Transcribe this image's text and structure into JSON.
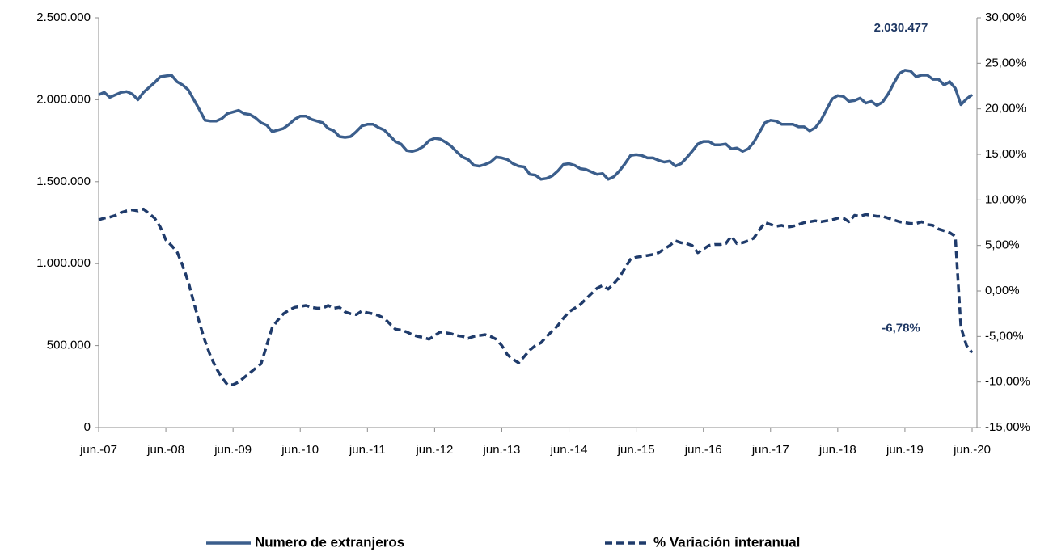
{
  "chart_data": {
    "type": "line",
    "categories": [
      "jun.-07",
      null,
      null,
      null,
      null,
      null,
      null,
      null,
      null,
      null,
      null,
      null,
      "jun.-08",
      null,
      null,
      null,
      null,
      null,
      null,
      null,
      null,
      null,
      null,
      null,
      "jun.-09",
      null,
      null,
      null,
      null,
      null,
      null,
      null,
      null,
      null,
      null,
      null,
      "jun.-10",
      null,
      null,
      null,
      null,
      null,
      null,
      null,
      null,
      null,
      null,
      null,
      "jun.-11",
      null,
      null,
      null,
      null,
      null,
      null,
      null,
      null,
      null,
      null,
      null,
      "jun.-12",
      null,
      null,
      null,
      null,
      null,
      null,
      null,
      null,
      null,
      null,
      null,
      "jun.-13",
      null,
      null,
      null,
      null,
      null,
      null,
      null,
      null,
      null,
      null,
      null,
      "jun.-14",
      null,
      null,
      null,
      null,
      null,
      null,
      null,
      null,
      null,
      null,
      null,
      "jun.-15",
      null,
      null,
      null,
      null,
      null,
      null,
      null,
      null,
      null,
      null,
      null,
      "jun.-16",
      null,
      null,
      null,
      null,
      null,
      null,
      null,
      null,
      null,
      null,
      null,
      "jun.-17",
      null,
      null,
      null,
      null,
      null,
      null,
      null,
      null,
      null,
      null,
      null,
      "jun.-18",
      null,
      null,
      null,
      null,
      null,
      null,
      null,
      null,
      null,
      null,
      null,
      "jun.-19",
      null,
      null,
      null,
      null,
      null,
      null,
      null,
      null,
      null,
      null,
      null,
      "jun.-20"
    ],
    "series": [
      {
        "name": "Numero de extranjeros",
        "color": "#3b5e8c",
        "dash": false,
        "values": [
          2030000,
          2045000,
          2015000,
          2030000,
          2045000,
          2050000,
          2035000,
          2000000,
          2045000,
          2075000,
          2105000,
          2140000,
          2145000,
          2150000,
          2110000,
          2090000,
          2060000,
          2000000,
          1940000,
          1875000,
          1870000,
          1870000,
          1885000,
          1915000,
          1925000,
          1935000,
          1915000,
          1910000,
          1890000,
          1860000,
          1845000,
          1805000,
          1815000,
          1825000,
          1850000,
          1880000,
          1900000,
          1900000,
          1880000,
          1870000,
          1860000,
          1825000,
          1810000,
          1775000,
          1770000,
          1775000,
          1805000,
          1840000,
          1850000,
          1850000,
          1830000,
          1815000,
          1780000,
          1745000,
          1730000,
          1690000,
          1685000,
          1695000,
          1715000,
          1750000,
          1765000,
          1760000,
          1740000,
          1715000,
          1680000,
          1650000,
          1635000,
          1600000,
          1595000,
          1605000,
          1620000,
          1650000,
          1645000,
          1635000,
          1610000,
          1595000,
          1590000,
          1545000,
          1540000,
          1515000,
          1520000,
          1535000,
          1565000,
          1605000,
          1610000,
          1600000,
          1580000,
          1575000,
          1560000,
          1545000,
          1550000,
          1515000,
          1530000,
          1565000,
          1610000,
          1660000,
          1665000,
          1660000,
          1645000,
          1645000,
          1630000,
          1620000,
          1625000,
          1595000,
          1610000,
          1645000,
          1685000,
          1730000,
          1745000,
          1745000,
          1725000,
          1725000,
          1730000,
          1700000,
          1705000,
          1685000,
          1700000,
          1740000,
          1800000,
          1860000,
          1875000,
          1870000,
          1850000,
          1850000,
          1850000,
          1835000,
          1835000,
          1810000,
          1830000,
          1875000,
          1940000,
          2005000,
          2025000,
          2020000,
          1990000,
          1995000,
          2010000,
          1980000,
          1990000,
          1965000,
          1985000,
          2035000,
          2100000,
          2160000,
          2180000,
          2175000,
          2140000,
          2150000,
          2150000,
          2125000,
          2125000,
          2090000,
          2110000,
          2070000,
          1970000,
          2005000,
          2030477
        ]
      },
      {
        "name": "% Variación interanual",
        "color": "#1f3b6b",
        "dash": true,
        "axis": "y2",
        "values": [
          7.8,
          8.0,
          8.1,
          8.3,
          8.6,
          8.8,
          8.9,
          8.8,
          9.0,
          8.5,
          8.0,
          7.0,
          5.6,
          5.0,
          4.3,
          2.8,
          1.0,
          -1.3,
          -3.5,
          -5.5,
          -7.2,
          -8.5,
          -9.5,
          -10.3,
          -10.3,
          -10.0,
          -9.5,
          -9.0,
          -8.5,
          -8.0,
          -6.0,
          -4.0,
          -3.2,
          -2.5,
          -2.1,
          -1.8,
          -1.7,
          -1.6,
          -1.8,
          -1.9,
          -1.9,
          -1.6,
          -1.9,
          -1.8,
          -2.3,
          -2.5,
          -2.6,
          -2.2,
          -2.4,
          -2.5,
          -2.7,
          -3.0,
          -3.6,
          -4.2,
          -4.3,
          -4.5,
          -4.8,
          -5.0,
          -5.1,
          -5.3,
          -4.9,
          -4.5,
          -4.6,
          -4.7,
          -4.9,
          -5.0,
          -5.2,
          -5.0,
          -4.9,
          -4.8,
          -5.0,
          -5.3,
          -6.0,
          -7.0,
          -7.5,
          -7.9,
          -7.2,
          -6.5,
          -6.0,
          -5.7,
          -5.0,
          -4.4,
          -3.8,
          -3.0,
          -2.3,
          -1.9,
          -1.5,
          -0.9,
          -0.3,
          0.3,
          0.6,
          0.2,
          0.8,
          1.5,
          2.5,
          3.5,
          3.7,
          3.8,
          3.9,
          4.0,
          4.2,
          4.6,
          5.0,
          5.5,
          5.3,
          5.2,
          5.0,
          4.2,
          4.6,
          5.0,
          5.1,
          5.1,
          5.2,
          6.0,
          5.2,
          5.3,
          5.5,
          5.8,
          6.7,
          7.5,
          7.3,
          7.1,
          7.2,
          7.0,
          7.1,
          7.3,
          7.5,
          7.6,
          7.7,
          7.6,
          7.7,
          7.8,
          8.0,
          8.0,
          7.6,
          8.3,
          8.2,
          8.4,
          8.3,
          8.2,
          8.2,
          8.0,
          7.8,
          7.6,
          7.5,
          7.4,
          7.4,
          7.6,
          7.3,
          7.2,
          6.8,
          6.6,
          6.4,
          6.0,
          -4.0,
          -6.0,
          -6.78
        ]
      }
    ],
    "annotations": [
      "2.030.477",
      "-6,78%"
    ],
    "ylim": [
      0,
      2500000
    ],
    "yticks": [
      0,
      {
        "value": 500000,
        "label": "500.000"
      },
      {
        "value": 1000000,
        "label": "1.000.000"
      },
      {
        "value": 1500000,
        "label": "1.500.000"
      },
      {
        "value": 2000000,
        "label": "2.000.000"
      },
      {
        "value": 2500000,
        "label": "2.500.000"
      }
    ],
    "y2lim": [
      -15,
      30
    ],
    "y2ticks": [
      {
        "value": -15,
        "label": "-15,00%"
      },
      {
        "value": -10,
        "label": "-10,00%"
      },
      {
        "value": -5,
        "label": "-5,00%"
      },
      {
        "value": 0,
        "label": "0,00%"
      },
      {
        "value": 5,
        "label": "5,00%"
      },
      {
        "value": 10,
        "label": "10,00%"
      },
      {
        "value": 15,
        "label": "15,00%"
      },
      {
        "value": 20,
        "label": "20,00%"
      },
      {
        "value": 25,
        "label": "25,00%"
      },
      {
        "value": 30,
        "label": "30,00%"
      }
    ],
    "grid": false,
    "legend": "bottom"
  }
}
